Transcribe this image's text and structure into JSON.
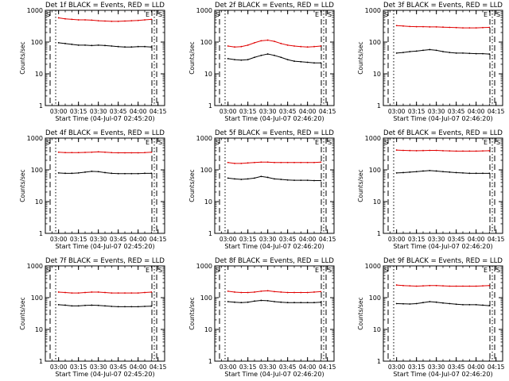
{
  "colors": {
    "events": "#000000",
    "lld": "#e00000",
    "frame": "#000000",
    "background": "#ffffff"
  },
  "shared": {
    "ylabel": "Counts/sec",
    "yscale": "log",
    "ylim": [
      1,
      1000
    ],
    "ytick_labels": [
      "1",
      "10",
      "100",
      "1000"
    ],
    "xtick_labels": [
      "03:00",
      "03:15",
      "03:30",
      "03:45",
      "04:00",
      "04:15"
    ],
    "marker_left": "S",
    "marker_mid": "E",
    "marker_right": "S"
  },
  "chart_data": [
    {
      "type": "line",
      "grid": false,
      "title": "Det 1f BLACK = Events, RED = LLD",
      "xlabel": "Start Time (04-Jul-07 02:45:20)",
      "x": [
        "03:00",
        "03:05",
        "03:10",
        "03:15",
        "03:20",
        "03:25",
        "03:30",
        "03:35",
        "03:40",
        "03:45",
        "03:50",
        "03:55",
        "04:00",
        "04:05",
        "04:10"
      ],
      "series": [
        {
          "color": "red",
          "values": [
            580,
            540,
            520,
            500,
            500,
            490,
            470,
            460,
            450,
            450,
            460,
            470,
            480,
            500,
            520
          ]
        },
        {
          "color": "black",
          "values": [
            95,
            90,
            85,
            80,
            80,
            78,
            80,
            78,
            75,
            72,
            70,
            70,
            72,
            72,
            70
          ]
        }
      ]
    },
    {
      "type": "line",
      "grid": false,
      "title": "Det 2f BLACK = Events, RED = LLD",
      "xlabel": "Start Time (04-Jul-07 02:46:20)",
      "x": [
        "03:00",
        "03:05",
        "03:10",
        "03:15",
        "03:20",
        "03:25",
        "03:30",
        "03:35",
        "03:40",
        "03:45",
        "03:50",
        "03:55",
        "04:00",
        "04:05",
        "04:10"
      ],
      "series": [
        {
          "color": "red",
          "values": [
            75,
            70,
            72,
            80,
            95,
            110,
            115,
            105,
            90,
            80,
            75,
            72,
            70,
            72,
            75
          ]
        },
        {
          "color": "black",
          "values": [
            30,
            28,
            27,
            28,
            33,
            38,
            42,
            38,
            33,
            28,
            25,
            24,
            23,
            22,
            22
          ]
        }
      ]
    },
    {
      "type": "line",
      "grid": false,
      "title": "Det 3f BLACK = Events, RED = LLD",
      "xlabel": "Start Time (04-Jul-07 02:46:20)",
      "x": [
        "03:00",
        "03:05",
        "03:10",
        "03:15",
        "03:20",
        "03:25",
        "03:30",
        "03:35",
        "03:40",
        "03:45",
        "03:50",
        "03:55",
        "04:00",
        "04:05",
        "04:10"
      ],
      "series": [
        {
          "color": "red",
          "values": [
            330,
            320,
            310,
            305,
            305,
            300,
            300,
            295,
            290,
            285,
            280,
            280,
            280,
            285,
            290
          ]
        },
        {
          "color": "black",
          "values": [
            45,
            47,
            50,
            52,
            55,
            58,
            55,
            50,
            47,
            45,
            45,
            44,
            43,
            43,
            42
          ]
        }
      ]
    },
    {
      "type": "line",
      "grid": false,
      "title": "Det 4f BLACK = Events, RED = LLD",
      "xlabel": "Start Time (04-Jul-07 02:45:20)",
      "x": [
        "03:00",
        "03:05",
        "03:10",
        "03:15",
        "03:20",
        "03:25",
        "03:30",
        "03:35",
        "03:40",
        "03:45",
        "03:50",
        "03:55",
        "04:00",
        "04:05",
        "04:10"
      ],
      "series": [
        {
          "color": "red",
          "values": [
            360,
            350,
            350,
            350,
            355,
            360,
            370,
            360,
            350,
            345,
            345,
            345,
            345,
            350,
            360
          ]
        },
        {
          "color": "black",
          "values": [
            80,
            78,
            78,
            80,
            85,
            90,
            88,
            82,
            78,
            76,
            76,
            76,
            76,
            78,
            78
          ]
        }
      ]
    },
    {
      "type": "line",
      "grid": false,
      "title": "Det 5f BLACK = Events, RED = LLD",
      "xlabel": "Start Time (04-Jul-07 02:46:20)",
      "x": [
        "03:00",
        "03:05",
        "03:10",
        "03:15",
        "03:20",
        "03:25",
        "03:30",
        "03:35",
        "03:40",
        "03:45",
        "03:50",
        "03:55",
        "04:00",
        "04:05",
        "04:10"
      ],
      "series": [
        {
          "color": "red",
          "values": [
            170,
            160,
            160,
            165,
            170,
            175,
            175,
            170,
            170,
            170,
            170,
            170,
            170,
            170,
            175
          ]
        },
        {
          "color": "black",
          "values": [
            55,
            52,
            50,
            52,
            55,
            62,
            58,
            52,
            50,
            48,
            47,
            47,
            47,
            46,
            46
          ]
        }
      ]
    },
    {
      "type": "line",
      "grid": false,
      "title": "Det 6f BLACK = Events, RED = LLD",
      "xlabel": "Start Time (04-Jul-07 02:46:20)",
      "x": [
        "03:00",
        "03:05",
        "03:10",
        "03:15",
        "03:20",
        "03:25",
        "03:30",
        "03:35",
        "03:40",
        "03:45",
        "03:50",
        "03:55",
        "04:00",
        "04:05",
        "04:10"
      ],
      "series": [
        {
          "color": "red",
          "values": [
            420,
            410,
            405,
            400,
            405,
            410,
            410,
            400,
            395,
            390,
            390,
            390,
            390,
            395,
            400
          ]
        },
        {
          "color": "black",
          "values": [
            80,
            82,
            85,
            88,
            92,
            95,
            92,
            88,
            85,
            82,
            80,
            78,
            78,
            78,
            78
          ]
        }
      ]
    },
    {
      "type": "line",
      "grid": false,
      "title": "Det 7f BLACK = Events, RED = LLD",
      "xlabel": "Start Time (04-Jul-07 02:45:20)",
      "x": [
        "03:00",
        "03:05",
        "03:10",
        "03:15",
        "03:20",
        "03:25",
        "03:30",
        "03:35",
        "03:40",
        "03:45",
        "03:50",
        "03:55",
        "04:00",
        "04:05",
        "04:10"
      ],
      "series": [
        {
          "color": "red",
          "values": [
            150,
            145,
            140,
            140,
            145,
            150,
            150,
            145,
            140,
            140,
            140,
            140,
            140,
            145,
            150
          ]
        },
        {
          "color": "black",
          "values": [
            60,
            58,
            55,
            55,
            57,
            58,
            57,
            55,
            53,
            52,
            52,
            52,
            52,
            53,
            54
          ]
        }
      ]
    },
    {
      "type": "line",
      "grid": false,
      "title": "Det 8f BLACK = Events, RED = LLD",
      "xlabel": "Start Time (04-Jul-07 02:46:20)",
      "x": [
        "03:00",
        "03:05",
        "03:10",
        "03:15",
        "03:20",
        "03:25",
        "03:30",
        "03:35",
        "03:40",
        "03:45",
        "03:50",
        "03:55",
        "04:00",
        "04:05",
        "04:10"
      ],
      "series": [
        {
          "color": "red",
          "values": [
            160,
            150,
            145,
            145,
            150,
            160,
            165,
            155,
            150,
            145,
            145,
            145,
            145,
            150,
            155
          ]
        },
        {
          "color": "black",
          "values": [
            75,
            72,
            70,
            72,
            78,
            82,
            80,
            75,
            72,
            70,
            70,
            70,
            70,
            70,
            72
          ]
        }
      ]
    },
    {
      "type": "line",
      "grid": false,
      "title": "Det 9f BLACK = Events, RED = LLD",
      "xlabel": "Start Time (04-Jul-07 02:46:20)",
      "x": [
        "03:00",
        "03:05",
        "03:10",
        "03:15",
        "03:20",
        "03:25",
        "03:30",
        "03:35",
        "03:40",
        "03:45",
        "03:50",
        "03:55",
        "04:00",
        "04:05",
        "04:10"
      ],
      "series": [
        {
          "color": "red",
          "values": [
            250,
            240,
            235,
            230,
            235,
            240,
            240,
            235,
            230,
            230,
            230,
            230,
            230,
            235,
            240
          ]
        },
        {
          "color": "black",
          "values": [
            65,
            64,
            63,
            65,
            70,
            75,
            72,
            68,
            65,
            62,
            60,
            60,
            60,
            58,
            56
          ]
        }
      ]
    }
  ]
}
